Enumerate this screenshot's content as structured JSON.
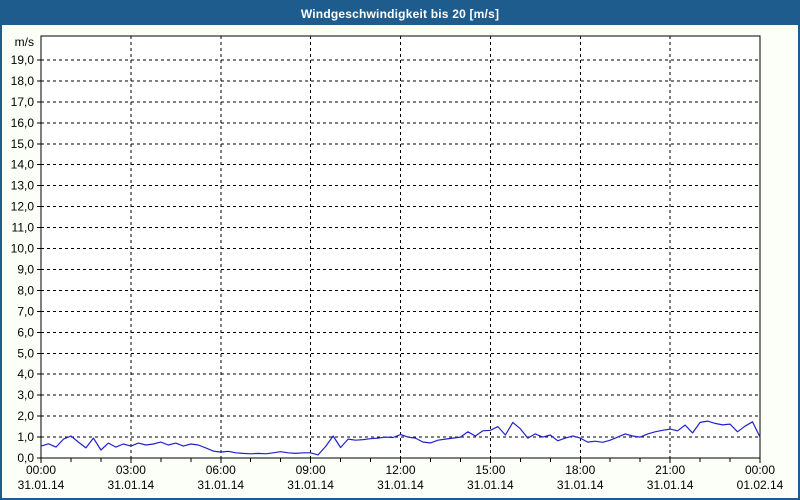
{
  "window": {
    "title": "Windgeschwindigkeit bis 20 [m/s]"
  },
  "colors": {
    "titlebar_bg": "#1e5c8e",
    "frame_border": "#1e5c8e",
    "title_text": "#ffffff",
    "page_bg": "#fcfff7",
    "plot_bg": "#ffffff",
    "axis": "#000000",
    "grid": "#000000",
    "line": "#2222cc"
  },
  "chart_data": {
    "type": "line",
    "title": "Windgeschwindigkeit bis 20 [m/s]",
    "ylabel": "m/s",
    "ylim": [
      0,
      20
    ],
    "grid": "dashed",
    "legend_position": "none",
    "y_tick_labels": [
      "0,0",
      "1,0",
      "2,0",
      "3,0",
      "4,0",
      "5,0",
      "6,0",
      "7,0",
      "8,0",
      "9,0",
      "10,0",
      "11,0",
      "12,0",
      "13,0",
      "14,0",
      "15,0",
      "16,0",
      "17,0",
      "18,0",
      "19,0"
    ],
    "x_major_ticks": [
      {
        "hour": 0,
        "time": "00:00",
        "date": "31.01.14"
      },
      {
        "hour": 3,
        "time": "03:00",
        "date": "31.01.14"
      },
      {
        "hour": 6,
        "time": "06:00",
        "date": "31.01.14"
      },
      {
        "hour": 9,
        "time": "09:00",
        "date": "31.01.14"
      },
      {
        "hour": 12,
        "time": "12:00",
        "date": "31.01.14"
      },
      {
        "hour": 15,
        "time": "15:00",
        "date": "31.01.14"
      },
      {
        "hour": 18,
        "time": "18:00",
        "date": "31.01.14"
      },
      {
        "hour": 21,
        "time": "21:00",
        "date": "31.01.14"
      },
      {
        "hour": 24,
        "time": "00:00",
        "date": "01.02.14"
      }
    ],
    "x_minor_tick_every_hours": 1,
    "x_range_hours": [
      0,
      24
    ],
    "series": [
      {
        "name": "Windgeschwindigkeit",
        "unit": "m/s",
        "color": "#2222cc",
        "start_hour": 0,
        "interval_hours": 0.25,
        "values": [
          0.57,
          0.68,
          0.52,
          0.9,
          1.05,
          0.76,
          0.48,
          0.95,
          0.38,
          0.71,
          0.52,
          0.67,
          0.57,
          0.71,
          0.62,
          0.67,
          0.76,
          0.62,
          0.71,
          0.57,
          0.67,
          0.62,
          0.48,
          0.33,
          0.28,
          0.32,
          0.25,
          0.22,
          0.2,
          0.22,
          0.2,
          0.25,
          0.3,
          0.25,
          0.22,
          0.25,
          0.25,
          0.15,
          0.55,
          1.05,
          0.5,
          0.9,
          0.85,
          0.88,
          0.92,
          0.95,
          1.0,
          0.98,
          1.12,
          1.0,
          0.95,
          0.76,
          0.72,
          0.85,
          0.9,
          0.95,
          1.0,
          1.25,
          1.05,
          1.3,
          1.32,
          1.5,
          1.1,
          1.7,
          1.4,
          0.95,
          1.15,
          1.0,
          1.1,
          0.82,
          0.95,
          1.05,
          0.95,
          0.76,
          0.8,
          0.75,
          0.85,
          1.0,
          1.15,
          1.05,
          1.0,
          1.15,
          1.25,
          1.32,
          1.38,
          1.3,
          1.57,
          1.2,
          1.7,
          1.76,
          1.65,
          1.58,
          1.62,
          1.25,
          1.52,
          1.73,
          1.0
        ]
      }
    ]
  }
}
